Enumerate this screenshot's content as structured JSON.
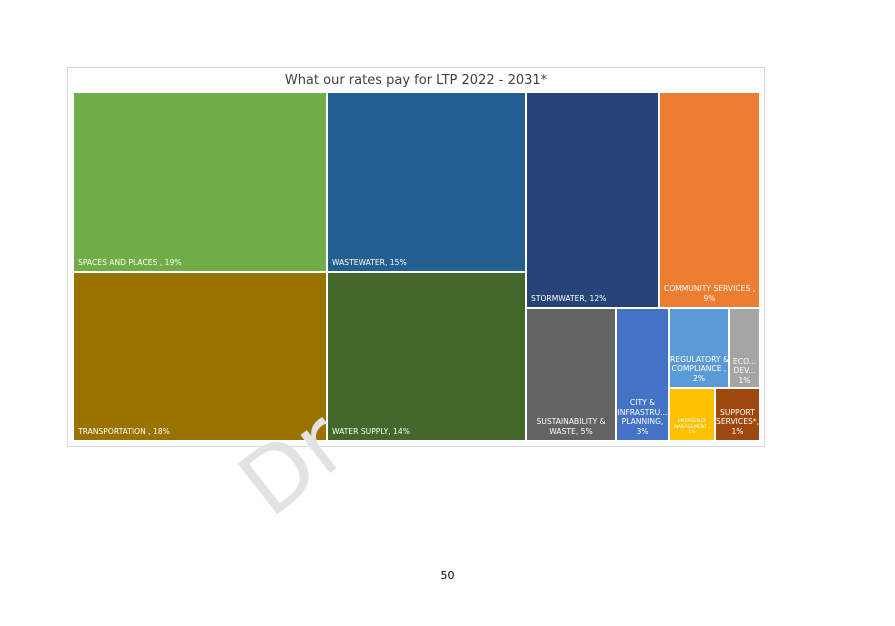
{
  "page": {
    "number": "50",
    "watermark": "Dr"
  },
  "chart_data": {
    "type": "treemap",
    "title": "What our rates pay for LTP 2022 - 2031*",
    "unit": "%",
    "items": [
      {
        "label": "SPACES AND PLACES , 19%",
        "category": "SPACES AND PLACES",
        "value": 19,
        "color": "#70ad47"
      },
      {
        "label": "TRANSPORTATION , 18%",
        "category": "TRANSPORTATION",
        "value": 18,
        "color": "#997300"
      },
      {
        "label": "WASTEWATER, 15%",
        "category": "WASTEWATER",
        "value": 15,
        "color": "#255e91"
      },
      {
        "label": "WATER SUPPLY, 14%",
        "category": "WATER SUPPLY",
        "value": 14,
        "color": "#43682b"
      },
      {
        "label": "STORMWATER, 12%",
        "category": "STORMWATER",
        "value": 12,
        "color": "#264478"
      },
      {
        "label": "COMMUNITY SERVICES , 9%",
        "category": "COMMUNITY SERVICES",
        "value": 9,
        "color": "#ed7d31"
      },
      {
        "label": "SUSTAINABILITY & WASTE, 5%",
        "category": "SUSTAINABILITY & WASTE",
        "value": 5,
        "color": "#636363"
      },
      {
        "label": "CITY & INFRASTRU... PLANNING, 3%",
        "category": "CITY & INFRASTRU... PLANNING",
        "value": 3,
        "color": "#4472c4"
      },
      {
        "label": "REGULATORY & COMPLIANCE , 2%",
        "category": "REGULATORY & COMPLIANCE",
        "value": 2,
        "color": "#5b9bd5"
      },
      {
        "label": "ECO... DEV... 1%",
        "category": "ECO... DEV...",
        "value": 1,
        "color": "#a5a5a5"
      },
      {
        "label": "EMERGENCY MANAGEMENT , 1%",
        "category": "EMERGENCY MANAGEMENT",
        "value": 1,
        "color": "#ffc000"
      },
      {
        "label": "SUPPORT SERVICES*, 1%",
        "category": "SUPPORT SERVICES*",
        "value": 1,
        "color": "#9e480e"
      }
    ]
  }
}
